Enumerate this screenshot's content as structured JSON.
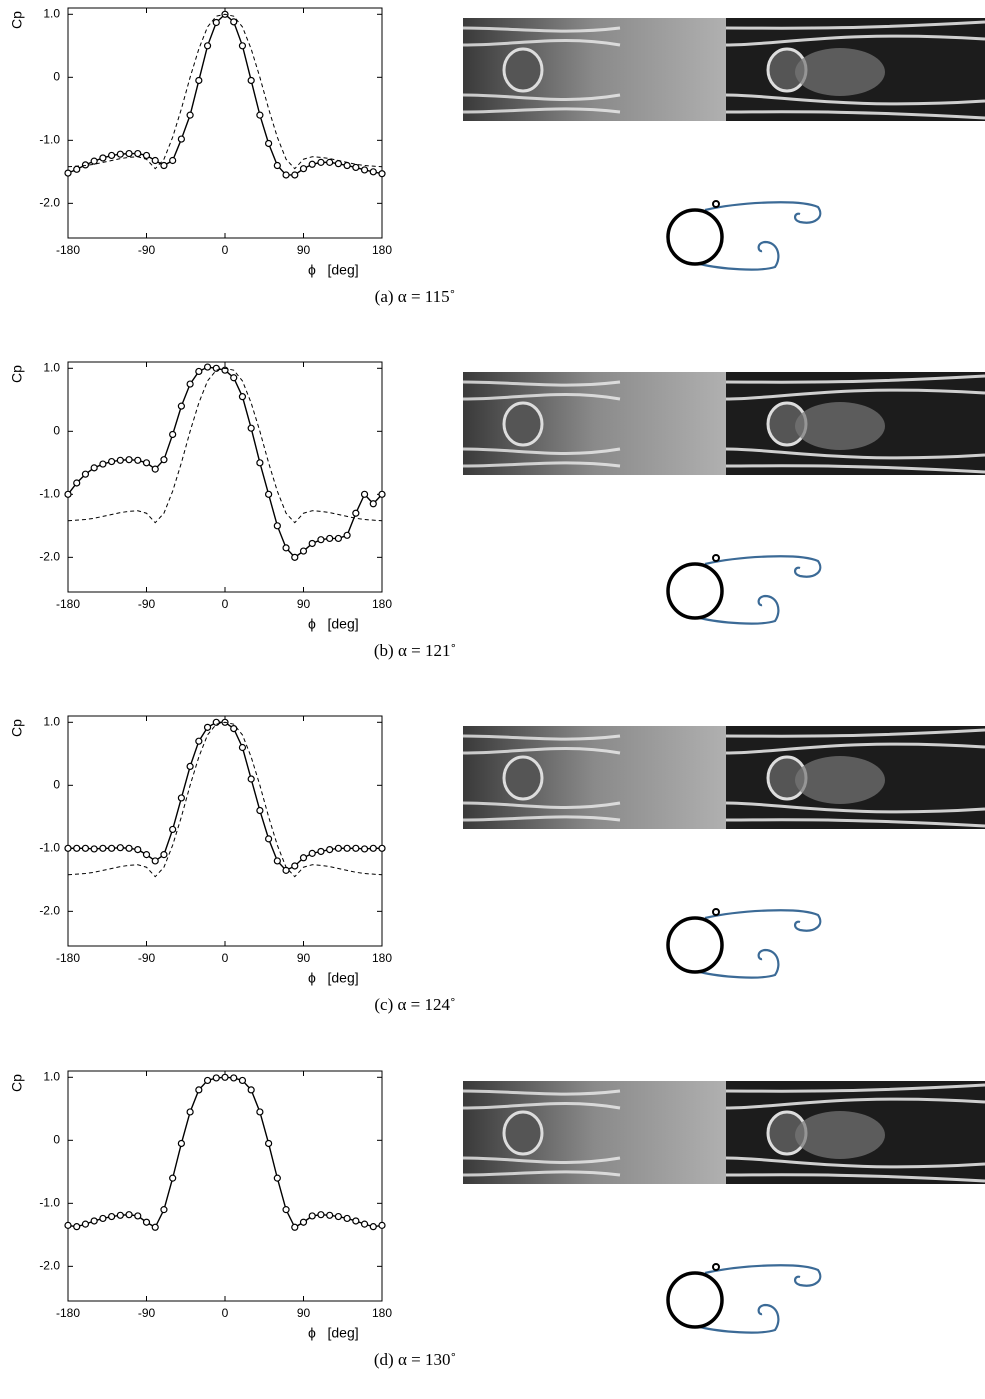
{
  "chart_data": [
    {
      "type": "line",
      "ylabel": "Cp",
      "xlabel": "ϕ   [deg]",
      "caption": "(a) α = 115˚",
      "xlim": [
        -180,
        180
      ],
      "xticks": [
        -180,
        -90,
        0,
        90,
        180
      ],
      "ylim": [
        -2.55,
        1.1
      ],
      "yticks": [
        {
          "value": 1,
          "label": "1.0"
        },
        0,
        {
          "value": -1,
          "label": "-1.0"
        },
        {
          "value": -2,
          "label": "-2.0"
        }
      ],
      "x": [
        -180,
        -170,
        -160,
        -150,
        -140,
        -130,
        -120,
        -110,
        -100,
        -90,
        -80,
        -70,
        -60,
        -50,
        -40,
        -30,
        -20,
        -10,
        0,
        10,
        20,
        30,
        40,
        50,
        60,
        70,
        80,
        90,
        100,
        110,
        120,
        130,
        140,
        150,
        160,
        170,
        180
      ],
      "series": [
        {
          "color": "#000000",
          "marker": "circle",
          "values": [
            -1.52,
            -1.46,
            -1.39,
            -1.33,
            -1.28,
            -1.24,
            -1.22,
            -1.21,
            -1.21,
            -1.24,
            -1.32,
            -1.4,
            -1.32,
            -0.98,
            -0.6,
            -0.05,
            0.5,
            0.87,
            1.0,
            0.88,
            0.5,
            -0.05,
            -0.6,
            -1.05,
            -1.4,
            -1.55,
            -1.55,
            -1.45,
            -1.38,
            -1.35,
            -1.35,
            -1.37,
            -1.4,
            -1.43,
            -1.47,
            -1.5,
            -1.53
          ]
        },
        {
          "color": "#000000",
          "dashed": true,
          "values": [
            -1.42,
            -1.41,
            -1.4,
            -1.38,
            -1.35,
            -1.32,
            -1.29,
            -1.27,
            -1.26,
            -1.3,
            -1.45,
            -1.3,
            -0.95,
            -0.5,
            0.0,
            0.45,
            0.8,
            0.97,
            1.0,
            0.97,
            0.8,
            0.45,
            0.0,
            -0.5,
            -0.95,
            -1.3,
            -1.45,
            -1.3,
            -1.26,
            -1.27,
            -1.29,
            -1.32,
            -1.35,
            -1.38,
            -1.4,
            -1.41,
            -1.42
          ]
        }
      ]
    },
    {
      "type": "line",
      "ylabel": "Cp",
      "xlabel": "ϕ   [deg]",
      "caption": "(b) α = 121˚",
      "xlim": [
        -180,
        180
      ],
      "xticks": [
        -180,
        -90,
        0,
        90,
        180
      ],
      "ylim": [
        -2.55,
        1.1
      ],
      "yticks": [
        {
          "value": 1,
          "label": "1.0"
        },
        0,
        {
          "value": -1,
          "label": "-1.0"
        },
        {
          "value": -2,
          "label": "-2.0"
        }
      ],
      "x": [
        -180,
        -170,
        -160,
        -150,
        -140,
        -130,
        -120,
        -110,
        -100,
        -90,
        -80,
        -70,
        -60,
        -50,
        -40,
        -30,
        -20,
        -10,
        0,
        10,
        20,
        30,
        40,
        50,
        60,
        70,
        80,
        90,
        100,
        110,
        120,
        130,
        140,
        150,
        160,
        170,
        180
      ],
      "series": [
        {
          "color": "#000000",
          "marker": "circle",
          "values": [
            -1.0,
            -0.82,
            -0.68,
            -0.58,
            -0.52,
            -0.48,
            -0.46,
            -0.45,
            -0.46,
            -0.5,
            -0.6,
            -0.45,
            -0.05,
            0.4,
            0.75,
            0.95,
            1.02,
            1.0,
            0.97,
            0.85,
            0.55,
            0.05,
            -0.5,
            -1.0,
            -1.5,
            -1.85,
            -2.0,
            -1.9,
            -1.78,
            -1.72,
            -1.7,
            -1.7,
            -1.65,
            -1.3,
            -1.0,
            -1.15,
            -1.0
          ]
        },
        {
          "color": "#000000",
          "dashed": true,
          "values": [
            -1.42,
            -1.41,
            -1.4,
            -1.38,
            -1.35,
            -1.32,
            -1.29,
            -1.27,
            -1.26,
            -1.3,
            -1.45,
            -1.3,
            -0.95,
            -0.5,
            0.0,
            0.45,
            0.8,
            0.97,
            1.0,
            0.97,
            0.8,
            0.45,
            0.0,
            -0.5,
            -0.95,
            -1.3,
            -1.45,
            -1.3,
            -1.26,
            -1.27,
            -1.29,
            -1.32,
            -1.35,
            -1.38,
            -1.4,
            -1.41,
            -1.42
          ]
        }
      ]
    },
    {
      "type": "line",
      "ylabel": "Cp",
      "xlabel": "ϕ   [deg]",
      "caption": "(c) α = 124˚",
      "xlim": [
        -180,
        180
      ],
      "xticks": [
        -180,
        -90,
        0,
        90,
        180
      ],
      "ylim": [
        -2.55,
        1.1
      ],
      "yticks": [
        {
          "value": 1,
          "label": "1.0"
        },
        0,
        {
          "value": -1,
          "label": "-1.0"
        },
        {
          "value": -2,
          "label": "-2.0"
        }
      ],
      "x": [
        -180,
        -170,
        -160,
        -150,
        -140,
        -130,
        -120,
        -110,
        -100,
        -90,
        -80,
        -70,
        -60,
        -50,
        -40,
        -30,
        -20,
        -10,
        0,
        10,
        20,
        30,
        40,
        50,
        60,
        70,
        80,
        90,
        100,
        110,
        120,
        130,
        140,
        150,
        160,
        170,
        180
      ],
      "series": [
        {
          "color": "#000000",
          "marker": "circle",
          "values": [
            -1.0,
            -1.0,
            -1.0,
            -1.01,
            -1.0,
            -1.0,
            -0.99,
            -1.0,
            -1.02,
            -1.1,
            -1.2,
            -1.1,
            -0.7,
            -0.2,
            0.3,
            0.7,
            0.92,
            1.0,
            1.0,
            0.9,
            0.6,
            0.1,
            -0.4,
            -0.85,
            -1.2,
            -1.35,
            -1.28,
            -1.15,
            -1.08,
            -1.05,
            -1.02,
            -1.0,
            -1.0,
            -1.0,
            -1.01,
            -1.0,
            -1.0
          ]
        },
        {
          "color": "#000000",
          "dashed": true,
          "values": [
            -1.42,
            -1.41,
            -1.4,
            -1.38,
            -1.35,
            -1.32,
            -1.29,
            -1.27,
            -1.26,
            -1.3,
            -1.45,
            -1.3,
            -0.95,
            -0.5,
            0.0,
            0.45,
            0.8,
            0.97,
            1.0,
            0.97,
            0.8,
            0.45,
            0.0,
            -0.5,
            -0.95,
            -1.3,
            -1.45,
            -1.3,
            -1.26,
            -1.27,
            -1.29,
            -1.32,
            -1.35,
            -1.38,
            -1.4,
            -1.41,
            -1.42
          ]
        }
      ]
    },
    {
      "type": "line",
      "ylabel": "Cp",
      "xlabel": "ϕ   [deg]",
      "caption": "(d) α = 130˚",
      "xlim": [
        -180,
        180
      ],
      "xticks": [
        -180,
        -90,
        0,
        90,
        180
      ],
      "ylim": [
        -2.55,
        1.1
      ],
      "yticks": [
        {
          "value": 1,
          "label": "1.0"
        },
        0,
        {
          "value": -1,
          "label": "-1.0"
        },
        {
          "value": -2,
          "label": "-2.0"
        }
      ],
      "x": [
        -180,
        -170,
        -160,
        -150,
        -140,
        -130,
        -120,
        -110,
        -100,
        -90,
        -80,
        -70,
        -60,
        -50,
        -40,
        -30,
        -20,
        -10,
        0,
        10,
        20,
        30,
        40,
        50,
        60,
        70,
        80,
        90,
        100,
        110,
        120,
        130,
        140,
        150,
        160,
        170,
        180
      ],
      "series": [
        {
          "color": "#000000",
          "marker": "circle",
          "values": [
            -1.35,
            -1.37,
            -1.33,
            -1.28,
            -1.24,
            -1.21,
            -1.19,
            -1.18,
            -1.2,
            -1.3,
            -1.38,
            -1.1,
            -0.6,
            -0.05,
            0.45,
            0.8,
            0.95,
            0.99,
            1.0,
            0.99,
            0.95,
            0.8,
            0.45,
            -0.05,
            -0.6,
            -1.1,
            -1.38,
            -1.3,
            -1.2,
            -1.18,
            -1.19,
            -1.21,
            -1.24,
            -1.28,
            -1.33,
            -1.37,
            -1.35
          ]
        }
      ]
    }
  ]
}
